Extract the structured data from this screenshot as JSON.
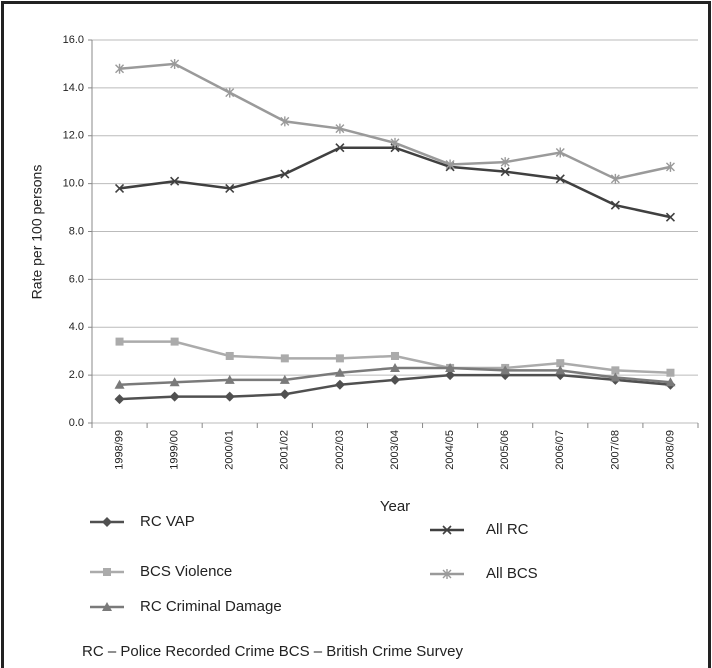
{
  "chart_data": {
    "type": "line",
    "x_label": "Year",
    "y_label": "Rate per 100 persons",
    "note": "RC – Police Recorded Crime BCS – British Crime Survey",
    "categories": [
      "1998/99",
      "1999/00",
      "2000/01",
      "2001/02",
      "2002/03",
      "2003/04",
      "2004/05",
      "2005/06",
      "2006/07",
      "2007/08",
      "2008/09"
    ],
    "ylim": [
      0,
      16
    ],
    "yticks": [
      {
        "value": 0,
        "label": "0.0"
      },
      {
        "value": 2,
        "label": "2.0"
      },
      {
        "value": 4,
        "label": "4.0"
      },
      {
        "value": 6,
        "label": "6.0"
      },
      {
        "value": 8,
        "label": "8.0"
      },
      {
        "value": 10,
        "label": "10.0"
      },
      {
        "value": 12,
        "label": "12.0"
      },
      {
        "value": 14,
        "label": "14.0"
      },
      {
        "value": 16,
        "label": "16.0"
      }
    ],
    "grid": true,
    "series": [
      {
        "name": "RC VAP",
        "color": "#505050",
        "marker": "diamond",
        "values": [
          1.0,
          1.1,
          1.1,
          1.2,
          1.6,
          1.8,
          2.0,
          2.0,
          2.0,
          1.8,
          1.6
        ]
      },
      {
        "name": "BCS Violence",
        "color": "#ababab",
        "marker": "square",
        "values": [
          3.4,
          3.4,
          2.8,
          2.7,
          2.7,
          2.8,
          2.3,
          2.3,
          2.5,
          2.2,
          2.1
        ]
      },
      {
        "name": "RC Criminal Damage",
        "color": "#7a7a7a",
        "marker": "triangle",
        "values": [
          1.6,
          1.7,
          1.8,
          1.8,
          2.1,
          2.3,
          2.3,
          2.2,
          2.2,
          1.9,
          1.7
        ]
      },
      {
        "name": "All RC",
        "color": "#404040",
        "marker": "x",
        "values": [
          9.8,
          10.1,
          9.8,
          10.4,
          11.5,
          11.5,
          10.7,
          10.5,
          10.2,
          9.1,
          8.6
        ]
      },
      {
        "name": "All BCS",
        "color": "#9a9a9a",
        "marker": "star",
        "values": [
          14.8,
          15.0,
          13.8,
          12.6,
          12.3,
          11.7,
          10.8,
          10.9,
          11.3,
          10.2,
          10.7
        ]
      }
    ]
  }
}
